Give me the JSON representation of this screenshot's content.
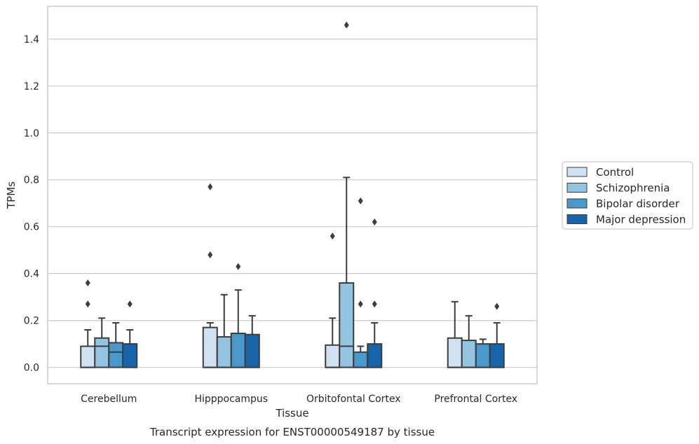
{
  "chart_data": {
    "type": "box",
    "xlabel": "Tissue",
    "ylabel": "TPMs",
    "caption": "Transcript expression for ENST00000549187 by tissue",
    "ylim": [
      -0.07,
      1.54
    ],
    "yticks": [
      0.0,
      0.2,
      0.4,
      0.6,
      0.8,
      1.0,
      1.2,
      1.4
    ],
    "ytick_labels": [
      "0.0",
      "0.2",
      "0.4",
      "0.6",
      "0.8",
      "1.0",
      "1.2",
      "1.4"
    ],
    "grid": "horizontal",
    "legend_position": "right",
    "categories": [
      "Cerebellum",
      "Hipppocampus",
      "Orbitofontal Cortex",
      "Prefrontal Cortex"
    ],
    "series": [
      {
        "name": "Control",
        "color": "#d0e1f2",
        "boxes": [
          {
            "min": 0.0,
            "q1": 0.0,
            "median": 0.0,
            "q3": 0.09,
            "max": 0.16,
            "outliers": [
              0.27,
              0.36
            ]
          },
          {
            "min": 0.0,
            "q1": 0.0,
            "median": 0.0,
            "q3": 0.17,
            "max": 0.19,
            "outliers": [
              0.48,
              0.77
            ]
          },
          {
            "min": 0.0,
            "q1": 0.0,
            "median": 0.0,
            "q3": 0.095,
            "max": 0.21,
            "outliers": [
              0.56
            ]
          },
          {
            "min": 0.0,
            "q1": 0.0,
            "median": 0.0,
            "q3": 0.125,
            "max": 0.28,
            "outliers": []
          }
        ]
      },
      {
        "name": "Schizophrenia",
        "color": "#94c4df",
        "boxes": [
          {
            "min": 0.0,
            "q1": 0.0,
            "median": 0.09,
            "q3": 0.125,
            "max": 0.21,
            "outliers": []
          },
          {
            "min": 0.0,
            "q1": 0.0,
            "median": 0.0,
            "q3": 0.13,
            "max": 0.31,
            "outliers": []
          },
          {
            "min": 0.0,
            "q1": 0.0,
            "median": 0.09,
            "q3": 0.36,
            "max": 0.81,
            "outliers": [
              1.46
            ]
          },
          {
            "min": 0.0,
            "q1": 0.0,
            "median": 0.0,
            "q3": 0.115,
            "max": 0.22,
            "outliers": []
          }
        ]
      },
      {
        "name": "Bipolar disorder",
        "color": "#4a98c9",
        "boxes": [
          {
            "min": 0.0,
            "q1": 0.0,
            "median": 0.065,
            "q3": 0.105,
            "max": 0.19,
            "outliers": []
          },
          {
            "min": 0.0,
            "q1": 0.0,
            "median": 0.0,
            "q3": 0.145,
            "max": 0.33,
            "outliers": [
              0.43
            ]
          },
          {
            "min": 0.0,
            "q1": 0.0,
            "median": 0.0,
            "q3": 0.065,
            "max": 0.09,
            "outliers": [
              0.27,
              0.71
            ]
          },
          {
            "min": 0.0,
            "q1": 0.0,
            "median": 0.0,
            "q3": 0.1,
            "max": 0.12,
            "outliers": []
          }
        ]
      },
      {
        "name": "Major depression",
        "color": "#1764ab",
        "boxes": [
          {
            "min": 0.0,
            "q1": 0.0,
            "median": 0.0,
            "q3": 0.1,
            "max": 0.16,
            "outliers": [
              0.27
            ]
          },
          {
            "min": 0.0,
            "q1": 0.0,
            "median": 0.0,
            "q3": 0.14,
            "max": 0.22,
            "outliers": []
          },
          {
            "min": 0.0,
            "q1": 0.0,
            "median": 0.0,
            "q3": 0.1,
            "max": 0.19,
            "outliers": [
              0.27,
              0.62
            ]
          },
          {
            "min": 0.0,
            "q1": 0.0,
            "median": 0.0,
            "q3": 0.1,
            "max": 0.19,
            "outliers": [
              0.26
            ]
          }
        ]
      }
    ]
  }
}
